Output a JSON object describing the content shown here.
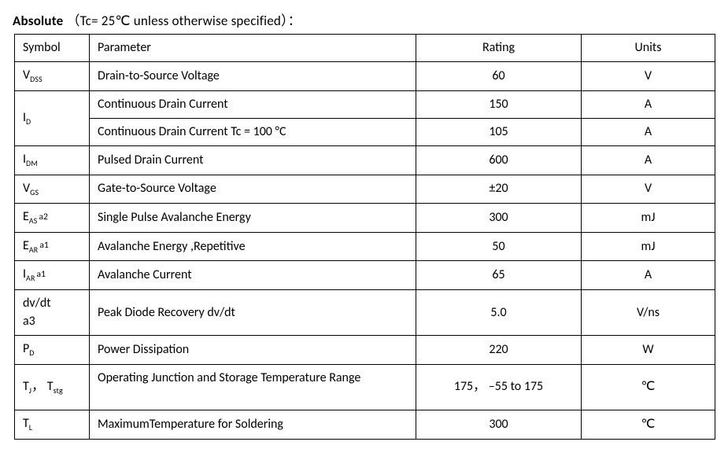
{
  "title": {
    "main": "Absolute",
    "cond_open": "（",
    "cond_text": "Tc= 25℃  unless otherwise specified",
    "cond_close": "）："
  },
  "head": {
    "symbol": "Symbol",
    "parameter": "Parameter",
    "rating": "Rating",
    "units": "Units"
  },
  "r_vdss": {
    "sym_base": "V",
    "sym_sub": "DSS",
    "param": "Drain-to-Source Voltage",
    "rating": "60",
    "units": "V"
  },
  "r_id1": {
    "sym_base": "I",
    "sym_sub": "D",
    "param": "Continuous Drain Current",
    "rating": "150",
    "units": "A"
  },
  "r_id2": {
    "param": "Continuous Drain Current Tc = 100 °C",
    "rating": "105",
    "units": "A"
  },
  "r_idm": {
    "sym_base": "I",
    "sym_sub": "DM",
    "param": "Pulsed Drain Current",
    "rating": "600",
    "units": "A"
  },
  "r_vgs": {
    "sym_base": "V",
    "sym_sub": "GS",
    "param": "Gate-to-Source Voltage",
    "rating": "±20",
    "units": "V"
  },
  "r_eas": {
    "sym_base": "E",
    "sym_sub": "AS",
    "sym_sup": "a2",
    "param": "Single Pulse Avalanche Energy",
    "rating": "300",
    "units": "mJ"
  },
  "r_ear": {
    "sym_base": "E",
    "sym_sub": "AR",
    "sym_sup": "a1",
    "param": "Avalanche Energy ,Repetitive",
    "rating": "50",
    "units": "mJ"
  },
  "r_iar": {
    "sym_base": "I",
    "sym_sub": "AR",
    "sym_sup": "a1",
    "param": "Avalanche Current",
    "rating": "65",
    "units": "A"
  },
  "r_dvdt": {
    "sym_line1": "dv/dt",
    "sym_line2": "a3",
    "param": "Peak Diode Recovery dv/dt",
    "rating": "5.0",
    "units": "V/ns"
  },
  "r_pd": {
    "sym_base": "P",
    "sym_sub": "D",
    "param": "Power Dissipation",
    "rating": "220",
    "units": "W"
  },
  "r_tj": {
    "sym1_base": "T",
    "sym1_sub": "J",
    "sep": "， ",
    "sym2_base": "T",
    "sym2_sub": "stg",
    "param": "Operating Junction and Storage Temperature Range",
    "rating": "175， –55 to 175",
    "units": "℃"
  },
  "r_tl": {
    "sym_base": "T",
    "sym_sub": "L",
    "param": "MaximumTemperature for Soldering",
    "rating": "300",
    "units": "℃"
  }
}
